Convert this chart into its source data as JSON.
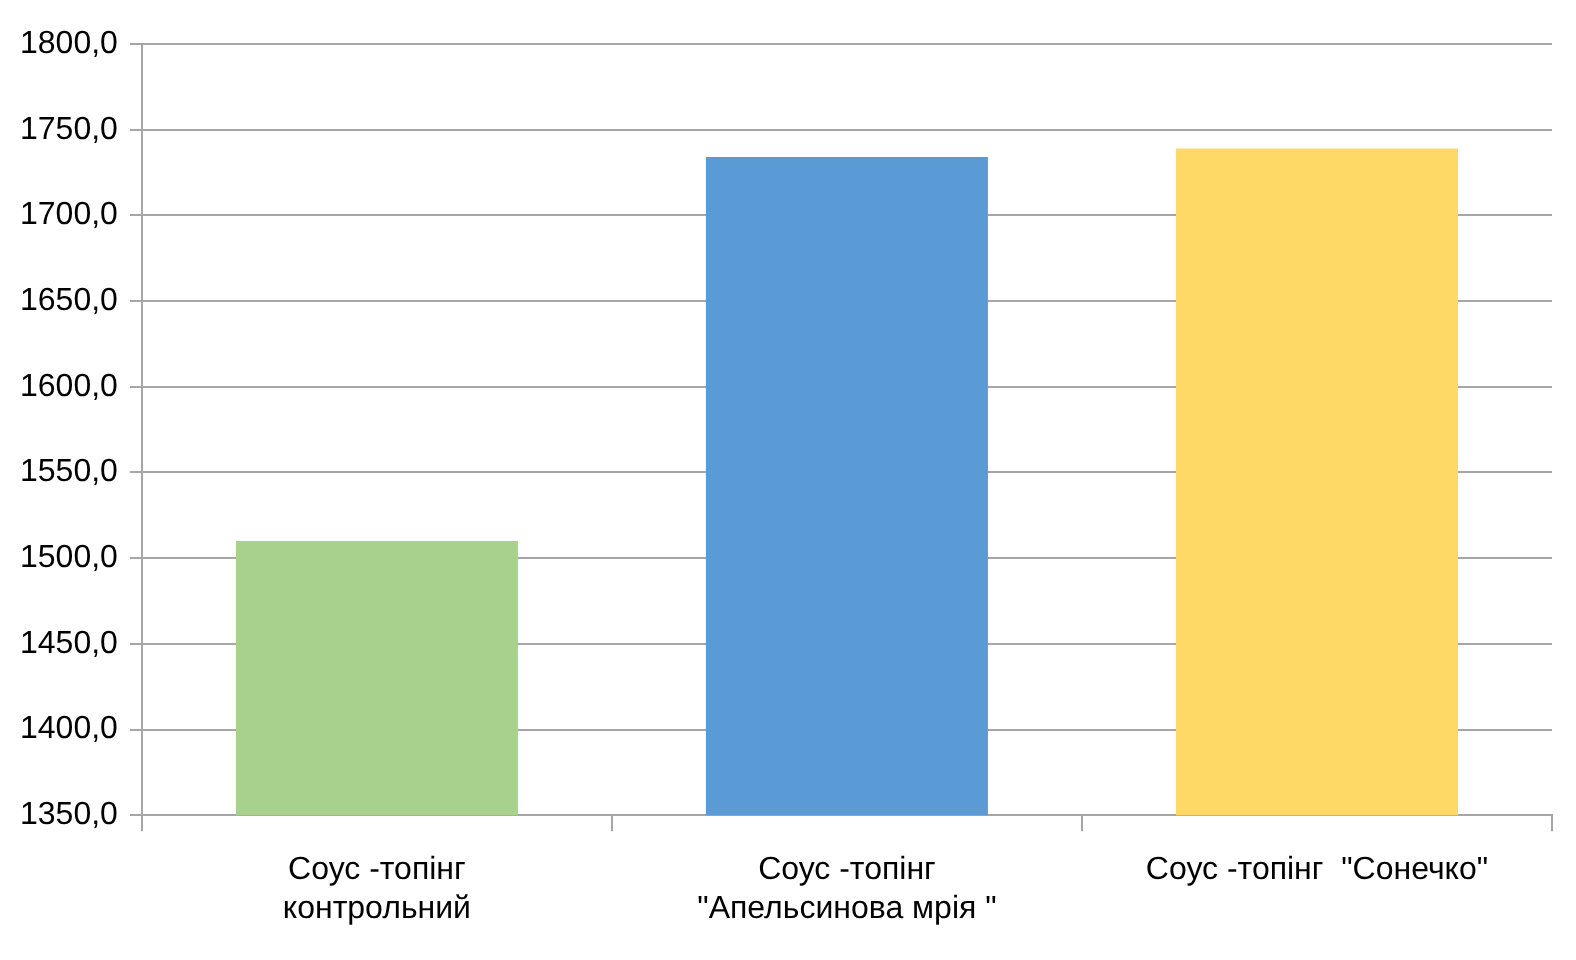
{
  "chart_data": {
    "type": "bar",
    "categories": [
      "Соус -топінг\nконтрольний",
      "Соус -топінг\n\"Апельсинова мрія \"",
      "Соус -топінг  \"Сонечко\""
    ],
    "values": [
      1510,
      1734,
      1739
    ],
    "colors": [
      "#a9d18e",
      "#5b9bd5",
      "#ffd966"
    ],
    "ylim": [
      1350,
      1800
    ],
    "yticks": [
      {
        "value": 1350,
        "label": "1350,0"
      },
      {
        "value": 1400,
        "label": "1400,0"
      },
      {
        "value": 1450,
        "label": "1450,0"
      },
      {
        "value": 1500,
        "label": "1500,0"
      },
      {
        "value": 1550,
        "label": "1550,0"
      },
      {
        "value": 1600,
        "label": "1600,0"
      },
      {
        "value": 1650,
        "label": "1650,0"
      },
      {
        "value": 1700,
        "label": "1700,0"
      },
      {
        "value": 1750,
        "label": "1750,0"
      },
      {
        "value": 1800,
        "label": "1800,0"
      }
    ],
    "grid": "y"
  }
}
